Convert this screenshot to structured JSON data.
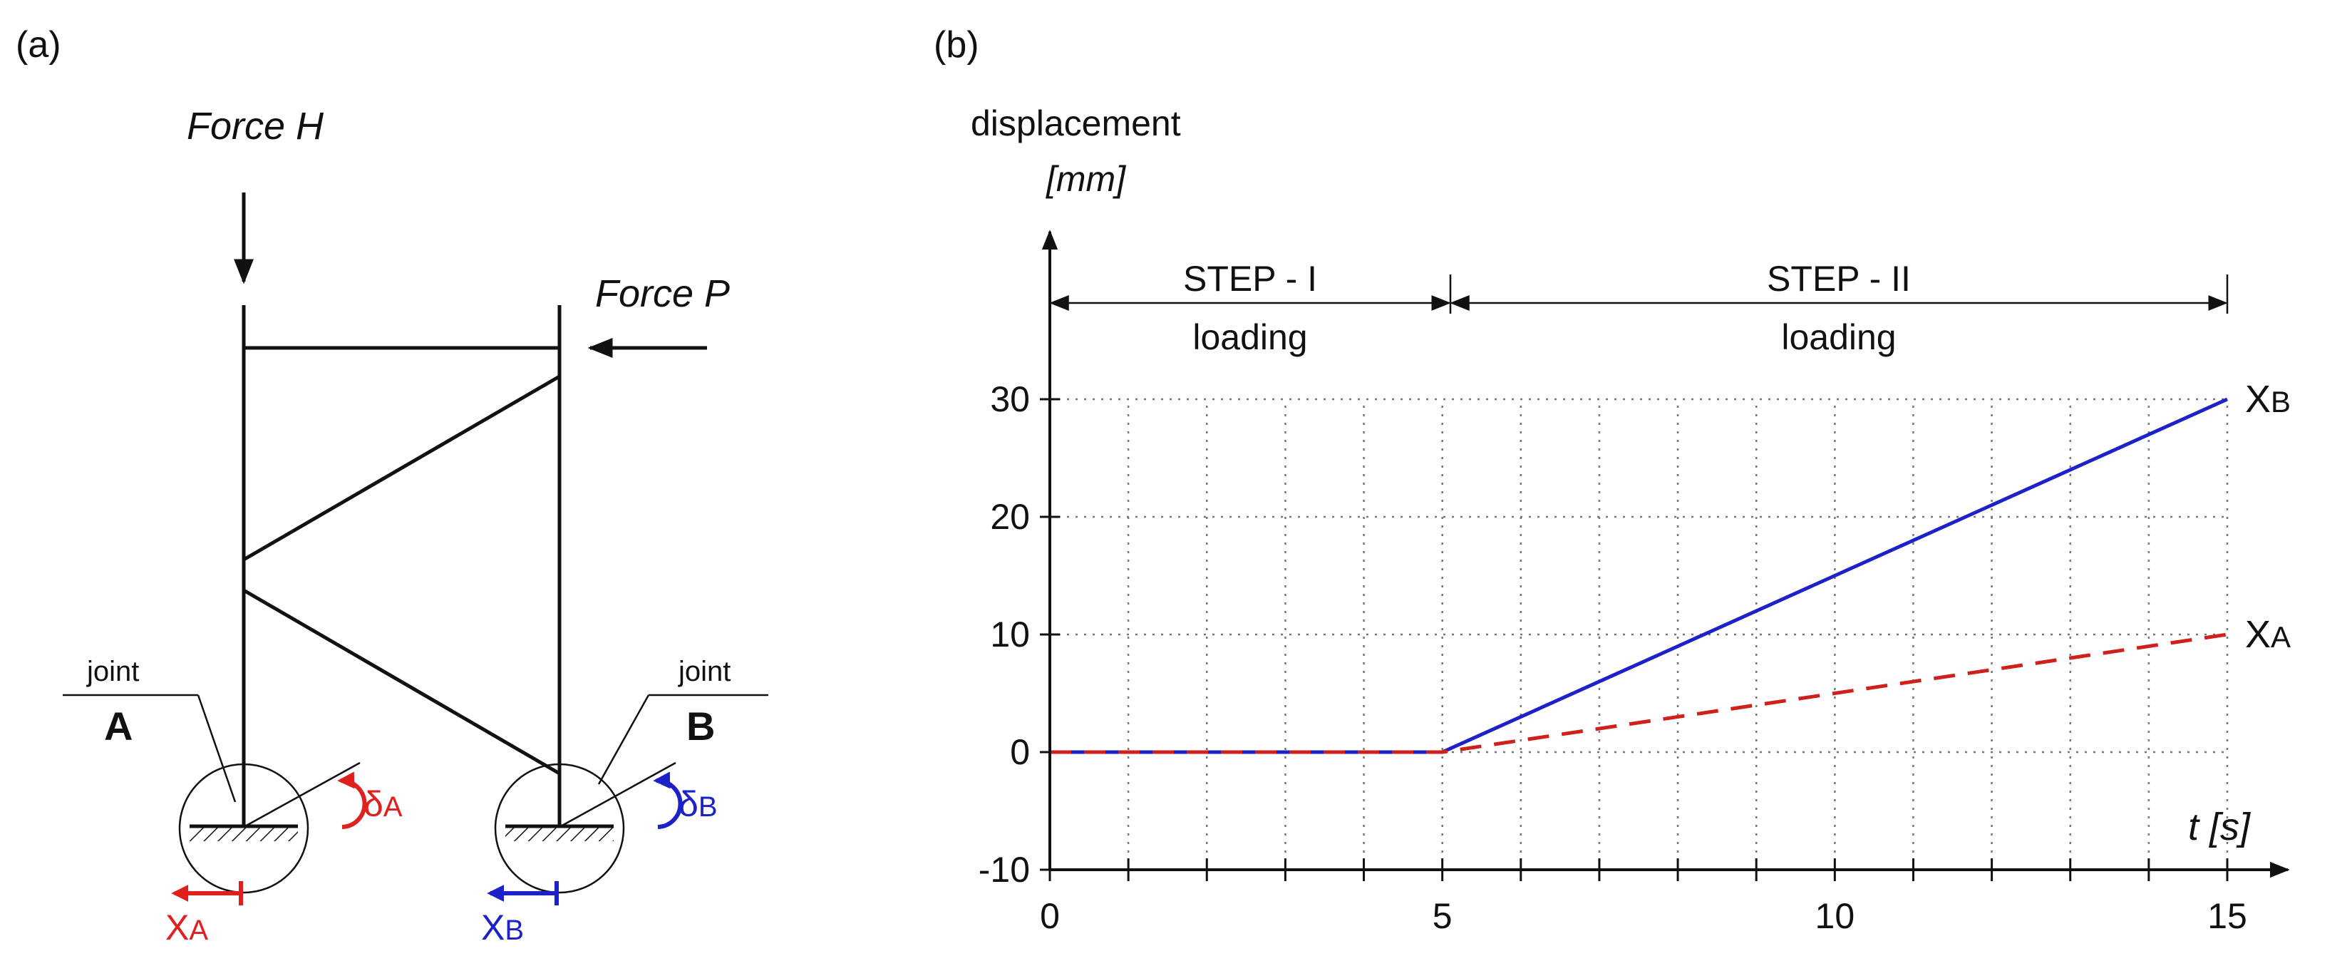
{
  "panel_a": {
    "label": "(a)",
    "force_h": "Force H",
    "force_p": "Force P",
    "joint_a": {
      "word": "joint",
      "letter": "A"
    },
    "joint_b": {
      "word": "joint",
      "letter": "B"
    },
    "delta_a": {
      "sym": "δ",
      "sub": "A"
    },
    "delta_b": {
      "sym": "δ",
      "sub": "B"
    },
    "x_a": {
      "sym": "X",
      "sub": "A"
    },
    "x_b": {
      "sym": "X",
      "sub": "B"
    },
    "colors": {
      "a": "#e0201c",
      "b": "#1c22c8",
      "frame": "#111111"
    }
  },
  "panel_b": {
    "label": "(b)",
    "step1": {
      "title": "STEP - I",
      "sub": "loading"
    },
    "step2": {
      "title": "STEP - II",
      "sub": "loading"
    }
  },
  "chart_data": {
    "type": "line",
    "title": "",
    "ylabel": "displacement",
    "yunit": "[mm]",
    "xlabel": "t [s]",
    "xlim": [
      0,
      15
    ],
    "ylim": [
      -10,
      30
    ],
    "grid": true,
    "xticks": [
      0,
      1,
      2,
      3,
      4,
      5,
      6,
      7,
      8,
      9,
      10,
      11,
      12,
      13,
      14,
      15
    ],
    "xtick_labels": [
      {
        "value": 0,
        "text": "0"
      },
      {
        "value": 5,
        "text": "5"
      },
      {
        "value": 10,
        "text": "10"
      },
      {
        "value": 15,
        "text": "15"
      }
    ],
    "yticks": [
      {
        "value": 30,
        "text": "30"
      },
      {
        "value": 20,
        "text": "20"
      },
      {
        "value": 10,
        "text": "10"
      },
      {
        "value": 0,
        "text": "0"
      },
      {
        "value": -10,
        "text": "-10"
      }
    ],
    "series": [
      {
        "name": "XB",
        "sym": "X",
        "sub": "B",
        "color": "#1c22c8",
        "style": "solid",
        "x": [
          0,
          5,
          15
        ],
        "y": [
          0,
          0,
          30
        ]
      },
      {
        "name": "XA",
        "sym": "X",
        "sub": "A",
        "color": "#d0201c",
        "style": "dashed",
        "x": [
          0,
          5,
          15
        ],
        "y": [
          0,
          0,
          10
        ]
      }
    ]
  }
}
